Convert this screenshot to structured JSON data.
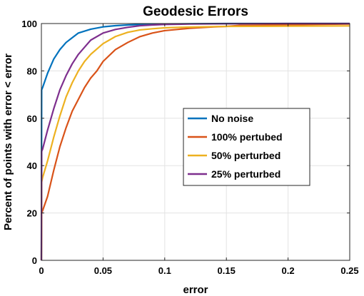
{
  "chart_data": {
    "type": "line",
    "title": "Geodesic Errors",
    "xlabel": "error",
    "ylabel": "Percent of points with error < error",
    "xlim": [
      0,
      0.25
    ],
    "ylim": [
      0,
      100
    ],
    "xticks": [
      0,
      0.05,
      0.1,
      0.15,
      0.2,
      0.25
    ],
    "xtick_labels": [
      "0",
      "0.05",
      "0.1",
      "0.15",
      "0.2",
      "0.25"
    ],
    "yticks": [
      0,
      20,
      40,
      60,
      80,
      100
    ],
    "ytick_labels": [
      "0",
      "20",
      "40",
      "60",
      "80",
      "100"
    ],
    "grid": true,
    "legend_position": "center-right",
    "series": [
      {
        "name": "No noise",
        "color": "#0072BD",
        "x": [
          0,
          0.0002,
          0.001,
          0.005,
          0.01,
          0.015,
          0.02,
          0.025,
          0.03,
          0.04,
          0.05,
          0.06,
          0.07,
          0.08,
          0.1,
          0.12,
          0.15,
          0.2,
          0.25
        ],
        "y": [
          0,
          72,
          73,
          79,
          85,
          89,
          92,
          94,
          96,
          97.6,
          98.6,
          99.1,
          99.4,
          99.6,
          99.8,
          99.9,
          100,
          100,
          100
        ]
      },
      {
        "name": "100% pertubed",
        "color": "#D95319",
        "x": [
          0,
          0.0002,
          0.001,
          0.005,
          0.01,
          0.015,
          0.02,
          0.025,
          0.03,
          0.035,
          0.04,
          0.045,
          0.05,
          0.06,
          0.07,
          0.08,
          0.09,
          0.1,
          0.11,
          0.12,
          0.13,
          0.14,
          0.15,
          0.16,
          0.2,
          0.25
        ],
        "y": [
          0,
          20,
          21,
          27,
          38,
          48,
          56,
          63,
          68,
          73,
          77,
          80,
          84,
          89,
          92,
          94.5,
          96,
          97,
          97.5,
          98,
          98.3,
          98.6,
          98.8,
          99.2,
          99.5,
          99.8
        ]
      },
      {
        "name": "50% perturbed",
        "color": "#EDB120",
        "x": [
          0,
          0.0002,
          0.001,
          0.005,
          0.01,
          0.015,
          0.02,
          0.025,
          0.03,
          0.035,
          0.04,
          0.05,
          0.06,
          0.07,
          0.08,
          0.09,
          0.1,
          0.12,
          0.14,
          0.15,
          0.2,
          0.25
        ],
        "y": [
          0,
          33,
          35,
          42,
          52,
          61,
          69,
          75,
          80,
          84,
          87,
          91.5,
          94.5,
          96.3,
          97.3,
          97.8,
          98.2,
          98.5,
          98.7,
          98.8,
          98.9,
          99
        ]
      },
      {
        "name": "25% perturbed",
        "color": "#7E2F8E",
        "x": [
          0,
          0.0002,
          0.001,
          0.005,
          0.01,
          0.015,
          0.02,
          0.025,
          0.03,
          0.035,
          0.04,
          0.05,
          0.06,
          0.07,
          0.08,
          0.09,
          0.1,
          0.12,
          0.15,
          0.2,
          0.25
        ],
        "y": [
          0,
          46,
          47,
          55,
          64,
          72,
          78,
          83,
          87,
          90,
          93,
          96,
          97.5,
          98.4,
          99.1,
          99.4,
          99.6,
          99.8,
          99.9,
          100,
          100
        ]
      }
    ]
  }
}
